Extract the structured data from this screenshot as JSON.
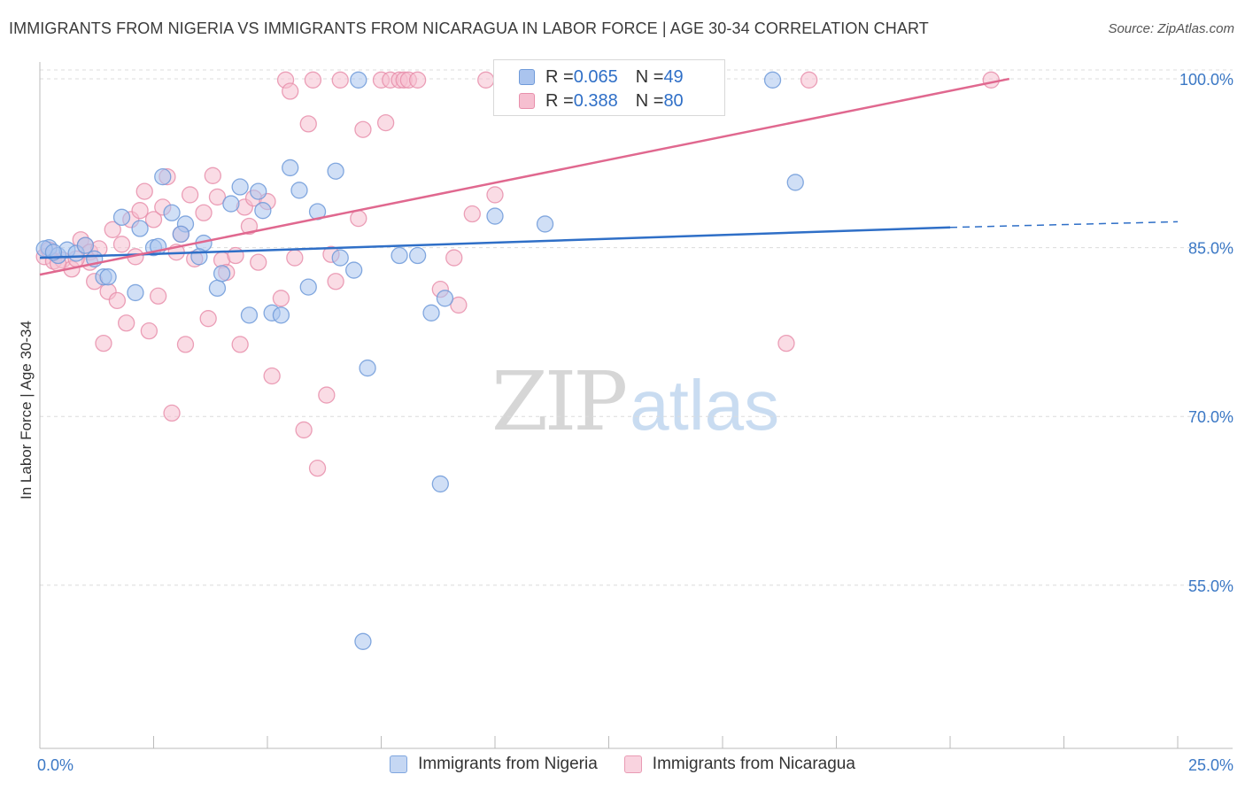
{
  "header": {
    "title": "IMMIGRANTS FROM NIGERIA VS IMMIGRANTS FROM NICARAGUA IN LABOR FORCE | AGE 30-34 CORRELATION CHART",
    "source": "Source: ZipAtlas.com"
  },
  "watermark": {
    "zip": "ZIP",
    "atlas": "atlas"
  },
  "legend_top": {
    "rows": [
      {
        "r_label": "R = ",
        "r_value": "0.065",
        "n_label": "N = ",
        "n_value": "49"
      },
      {
        "r_label": "R = ",
        "r_value": "0.388",
        "n_label": "N = ",
        "n_value": "80"
      }
    ]
  },
  "colors": {
    "nigeria_fill": "#aac4ee",
    "nigeria_stroke": "#6f9ad9",
    "nigeria_line": "#2f6fc7",
    "nicaragua_fill": "#f6bfd0",
    "nicaragua_stroke": "#e88fab",
    "nicaragua_line": "#e0688f",
    "tick_label": "#3b78c5",
    "grid": "#dcdcdc"
  },
  "chart_data": {
    "type": "scatter",
    "title": "IMMIGRANTS FROM NIGERIA VS IMMIGRANTS FROM NICARAGUA IN LABOR FORCE | AGE 30-34 CORRELATION CHART",
    "xlabel": "",
    "ylabel": "In Labor Force | Age 30-34",
    "xlim": [
      0,
      25
    ],
    "ylim": [
      40.5,
      101.5
    ],
    "x_tick_labels": [
      "0.0%",
      "25.0%"
    ],
    "y_ticks": [
      55,
      70,
      85,
      100
    ],
    "y_tick_labels": [
      "55.0%",
      "70.0%",
      "85.0%",
      "100.0%"
    ],
    "grid": true,
    "legend_position": "bottom",
    "series": [
      {
        "name": "Immigrants from Nigeria",
        "r": 0.065,
        "n": 49,
        "trend": {
          "x0": 0,
          "y0": 84.1,
          "x1": 20,
          "y1": 86.8,
          "dash_to_x": 25,
          "dash_to_y": 87.3
        },
        "points": [
          [
            0.2,
            85.0
          ],
          [
            0.4,
            84.3
          ],
          [
            0.6,
            84.8
          ],
          [
            0.8,
            84.5
          ],
          [
            1.0,
            85.2
          ],
          [
            1.2,
            84.0
          ],
          [
            1.4,
            82.4
          ],
          [
            1.5,
            82.4
          ],
          [
            1.8,
            87.7
          ],
          [
            2.1,
            81.0
          ],
          [
            2.2,
            86.7
          ],
          [
            2.5,
            85.0
          ],
          [
            2.6,
            85.1
          ],
          [
            2.7,
            91.3
          ],
          [
            2.9,
            88.1
          ],
          [
            3.2,
            87.1
          ],
          [
            3.1,
            86.2
          ],
          [
            3.6,
            85.4
          ],
          [
            3.5,
            84.2
          ],
          [
            3.9,
            81.4
          ],
          [
            4.0,
            82.7
          ],
          [
            4.2,
            88.9
          ],
          [
            4.4,
            90.4
          ],
          [
            4.6,
            79.0
          ],
          [
            4.8,
            90.0
          ],
          [
            4.9,
            88.3
          ],
          [
            5.1,
            79.2
          ],
          [
            5.3,
            79.0
          ],
          [
            5.5,
            92.1
          ],
          [
            5.7,
            90.1
          ],
          [
            5.9,
            81.5
          ],
          [
            6.1,
            88.2
          ],
          [
            6.5,
            91.8
          ],
          [
            6.6,
            84.1
          ],
          [
            6.9,
            83.0
          ],
          [
            7.0,
            99.9
          ],
          [
            7.2,
            74.3
          ],
          [
            7.9,
            84.3
          ],
          [
            8.3,
            84.3
          ],
          [
            8.6,
            79.2
          ],
          [
            8.8,
            64.0
          ],
          [
            8.9,
            80.5
          ],
          [
            10.0,
            87.8
          ],
          [
            11.1,
            87.1
          ],
          [
            16.1,
            99.9
          ],
          [
            16.6,
            90.8
          ],
          [
            7.1,
            50.0
          ],
          [
            0.1,
            84.9
          ],
          [
            0.3,
            84.6
          ]
        ]
      },
      {
        "name": "Immigrants from Nicaragua",
        "r": 0.388,
        "n": 80,
        "trend": {
          "x0": 0,
          "y0": 82.6,
          "x1": 21.3,
          "y1": 100.0
        },
        "points": [
          [
            0.1,
            84.2
          ],
          [
            0.2,
            84.8
          ],
          [
            0.3,
            83.8
          ],
          [
            0.5,
            83.9
          ],
          [
            0.7,
            83.1
          ],
          [
            0.9,
            85.7
          ],
          [
            1.0,
            85.2
          ],
          [
            1.1,
            84.6
          ],
          [
            1.2,
            82.0
          ],
          [
            1.3,
            84.9
          ],
          [
            1.4,
            76.5
          ],
          [
            1.5,
            81.1
          ],
          [
            1.6,
            86.6
          ],
          [
            1.7,
            80.3
          ],
          [
            1.8,
            85.3
          ],
          [
            1.9,
            78.3
          ],
          [
            2.0,
            87.5
          ],
          [
            2.1,
            84.2
          ],
          [
            2.2,
            88.3
          ],
          [
            2.3,
            90.0
          ],
          [
            2.4,
            77.6
          ],
          [
            2.5,
            87.5
          ],
          [
            2.6,
            80.7
          ],
          [
            2.7,
            88.6
          ],
          [
            2.8,
            91.3
          ],
          [
            2.9,
            70.3
          ],
          [
            3.0,
            84.6
          ],
          [
            3.1,
            86.2
          ],
          [
            3.2,
            76.4
          ],
          [
            3.3,
            89.7
          ],
          [
            3.4,
            84.0
          ],
          [
            3.6,
            88.1
          ],
          [
            3.7,
            78.7
          ],
          [
            3.8,
            91.4
          ],
          [
            3.9,
            89.5
          ],
          [
            4.0,
            83.9
          ],
          [
            4.1,
            82.8
          ],
          [
            4.3,
            84.3
          ],
          [
            4.4,
            76.4
          ],
          [
            4.5,
            88.6
          ],
          [
            4.6,
            86.9
          ],
          [
            4.7,
            89.4
          ],
          [
            4.8,
            83.7
          ],
          [
            5.0,
            89.1
          ],
          [
            5.1,
            73.6
          ],
          [
            5.3,
            80.5
          ],
          [
            5.4,
            99.9
          ],
          [
            5.5,
            98.9
          ],
          [
            5.6,
            84.1
          ],
          [
            5.8,
            68.8
          ],
          [
            5.9,
            96.0
          ],
          [
            6.0,
            99.9
          ],
          [
            6.1,
            65.4
          ],
          [
            6.3,
            71.9
          ],
          [
            6.4,
            84.4
          ],
          [
            6.5,
            82.0
          ],
          [
            6.6,
            99.9
          ],
          [
            7.0,
            87.6
          ],
          [
            7.1,
            95.5
          ],
          [
            7.5,
            99.9
          ],
          [
            7.6,
            96.1
          ],
          [
            7.7,
            99.9
          ],
          [
            7.9,
            99.9
          ],
          [
            8.0,
            99.9
          ],
          [
            8.1,
            99.9
          ],
          [
            8.3,
            99.9
          ],
          [
            8.8,
            81.3
          ],
          [
            9.1,
            84.1
          ],
          [
            9.2,
            79.9
          ],
          [
            9.5,
            88.0
          ],
          [
            9.8,
            99.9
          ],
          [
            10.0,
            89.7
          ],
          [
            10.4,
            99.9
          ],
          [
            10.5,
            98.5
          ],
          [
            16.4,
            76.5
          ],
          [
            16.9,
            99.9
          ],
          [
            20.9,
            99.9
          ],
          [
            1.1,
            83.7
          ],
          [
            0.8,
            84.0
          ],
          [
            0.4,
            83.6
          ]
        ]
      }
    ]
  },
  "bottom_legend": {
    "items": [
      {
        "label": "Immigrants from Nigeria"
      },
      {
        "label": "Immigrants from Nicaragua"
      }
    ]
  }
}
